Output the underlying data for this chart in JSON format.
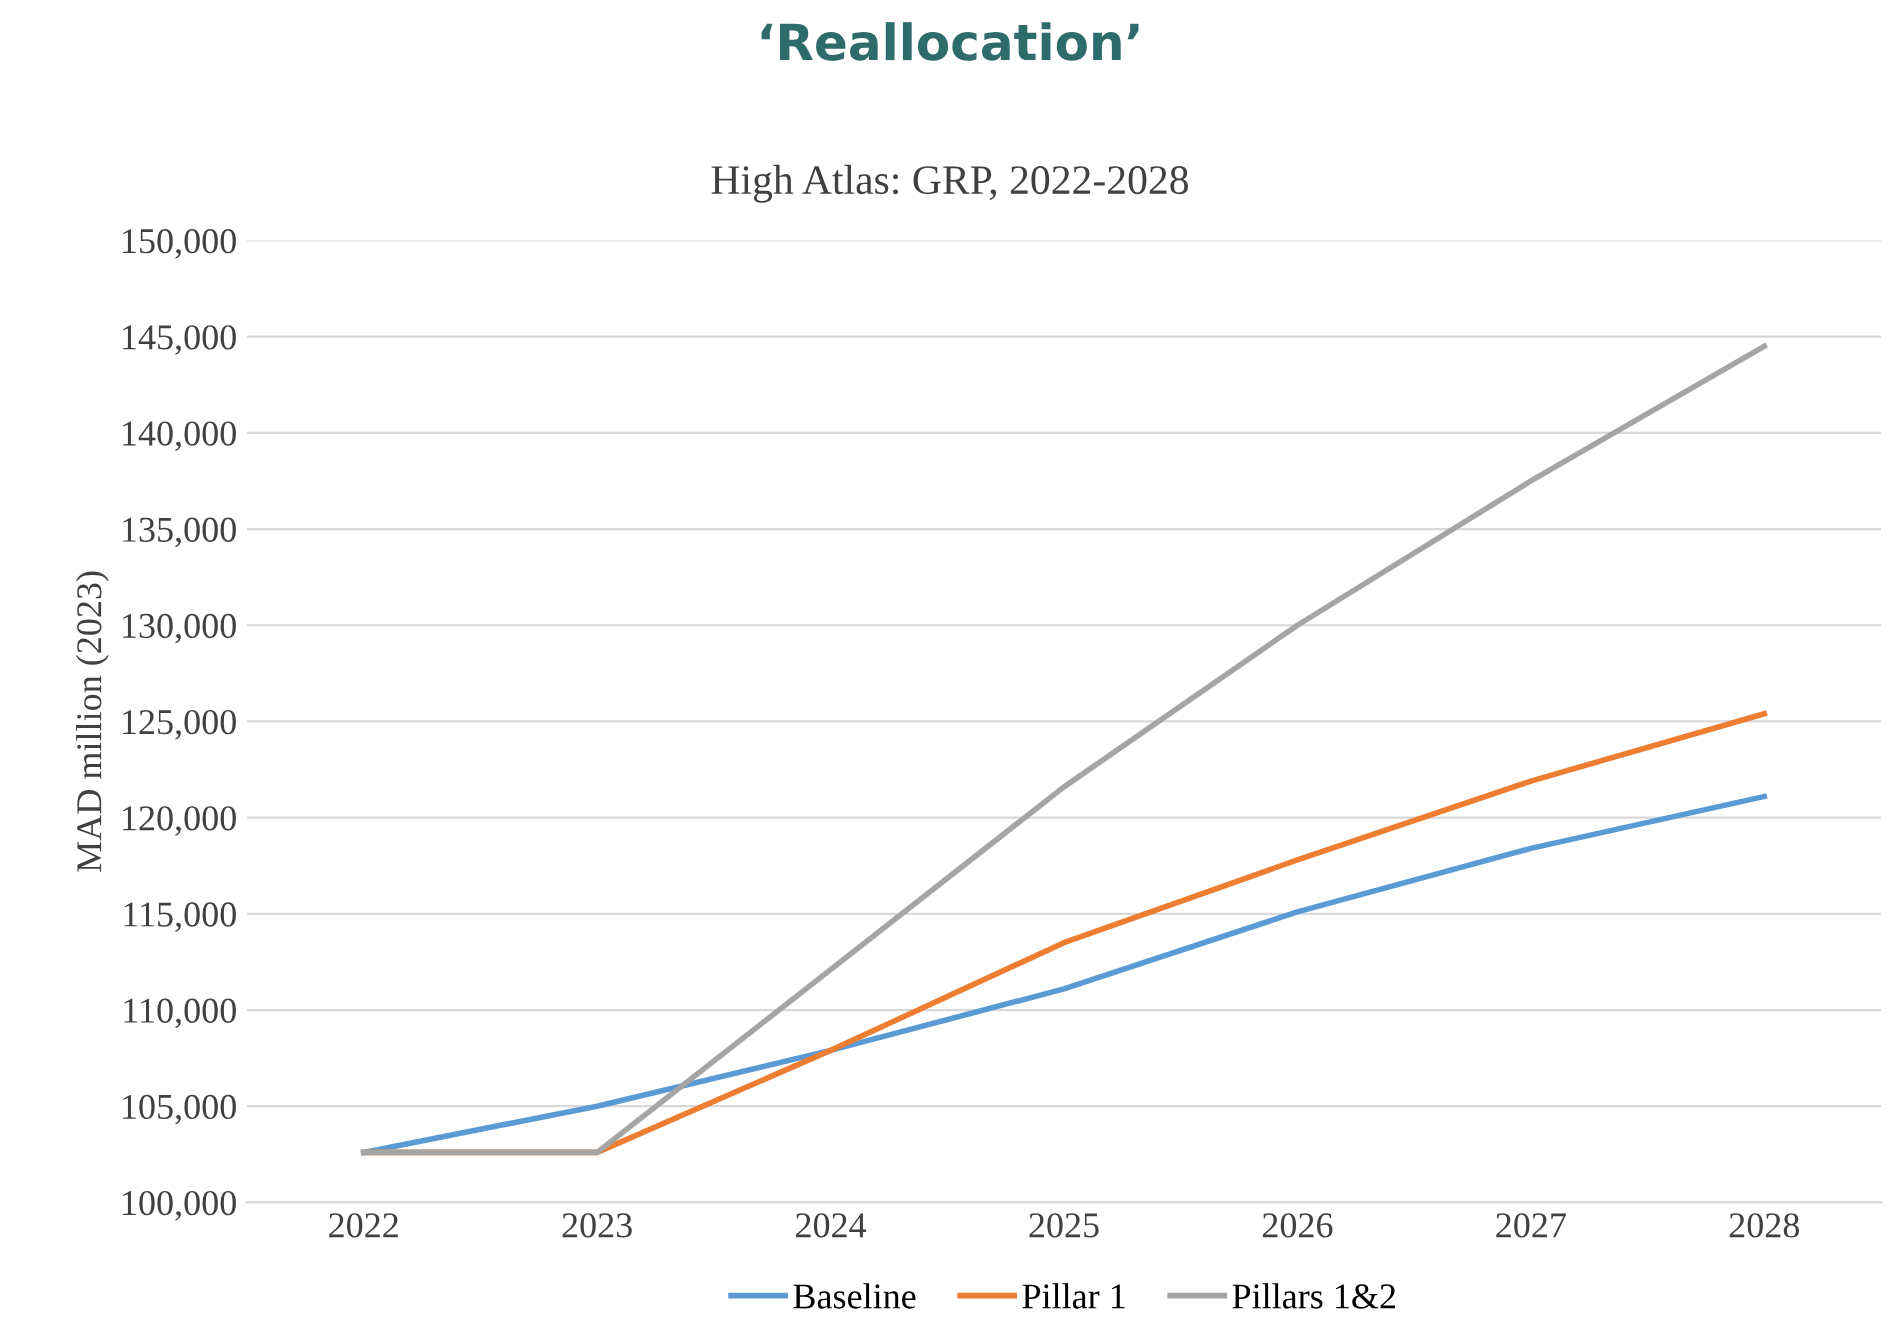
{
  "chart_data": {
    "type": "line",
    "title": "‘Reallocation’",
    "subtitle": "High Atlas: GRP, 2022-2028",
    "ylabel": "MAD million (2023)",
    "categories": [
      "2022",
      "2023",
      "2024",
      "2025",
      "2026",
      "2027",
      "2028"
    ],
    "series": [
      {
        "name": "Baseline",
        "color": "#5b9bd5",
        "values": [
          102600,
          105000,
          107900,
          111100,
          115100,
          118400,
          121100
        ]
      },
      {
        "name": "Pillar 1",
        "color": "#ed7d31",
        "values": [
          102600,
          102600,
          107900,
          113500,
          117800,
          121900,
          125400
        ]
      },
      {
        "name": "Pillars 1&2",
        "color": "#a5a5a5",
        "values": [
          102600,
          102600,
          112100,
          121600,
          130000,
          137500,
          144500
        ]
      }
    ],
    "ylim": [
      100000,
      150000
    ],
    "yticks": [
      {
        "value": 100000,
        "label": "100,000"
      },
      {
        "value": 105000,
        "label": "105,000"
      },
      {
        "value": 110000,
        "label": "110,000"
      },
      {
        "value": 115000,
        "label": "115,000"
      },
      {
        "value": 120000,
        "label": "120,000"
      },
      {
        "value": 125000,
        "label": "125,000"
      },
      {
        "value": 130000,
        "label": "130,000"
      },
      {
        "value": 135000,
        "label": "135,000"
      },
      {
        "value": 140000,
        "label": "140,000"
      },
      {
        "value": 145000,
        "label": "145,000"
      },
      {
        "value": 150000,
        "label": "150,000"
      }
    ],
    "grid": "y",
    "legend": "bottom"
  }
}
